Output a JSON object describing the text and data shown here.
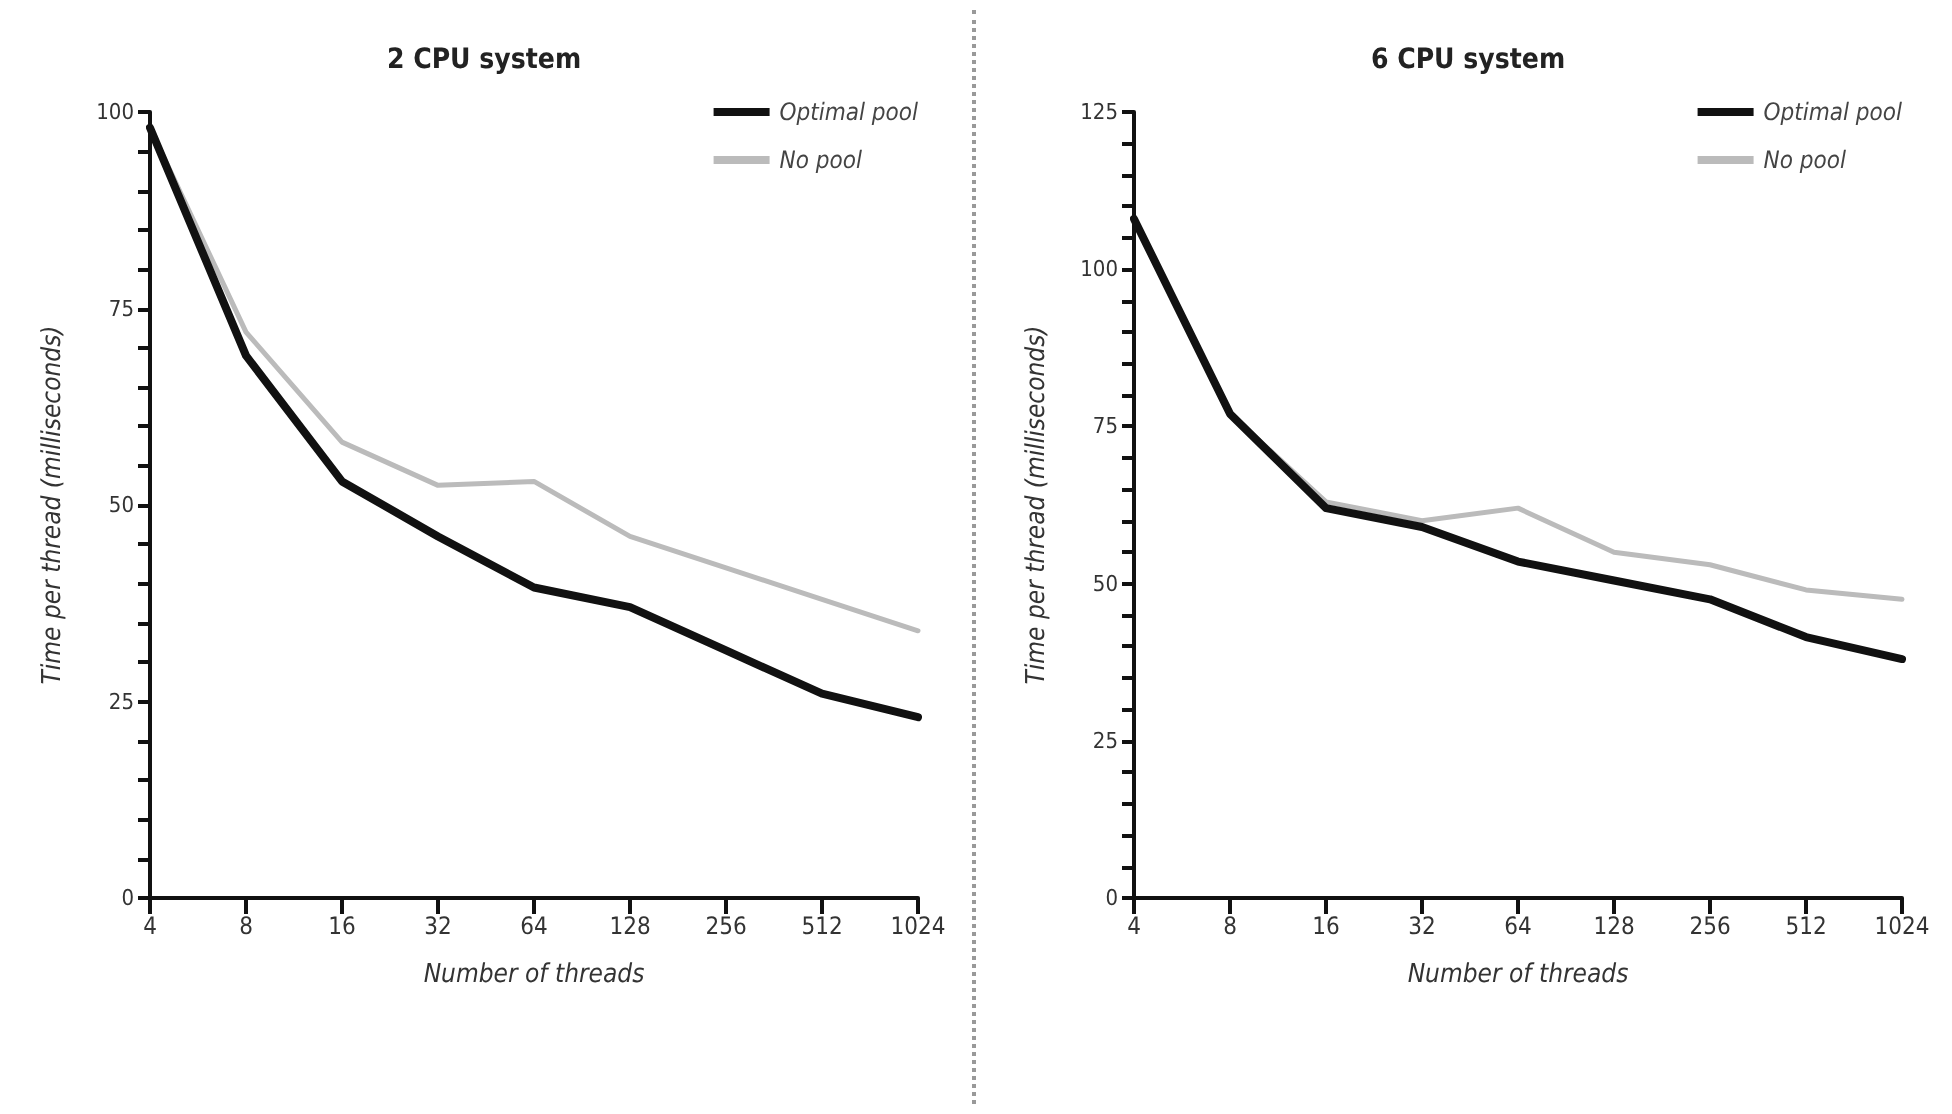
{
  "chart_data": [
    {
      "type": "line",
      "title": "2 CPU system",
      "xlabel": "Number of threads",
      "ylabel": "Time per thread (milliseconds)",
      "categories": [
        "4",
        "8",
        "16",
        "32",
        "64",
        "128",
        "256",
        "512",
        "1024"
      ],
      "series": [
        {
          "name": "Optimal pool",
          "color": "#111111",
          "values": [
            98,
            69,
            53,
            46,
            39.5,
            37,
            31.5,
            26,
            23
          ]
        },
        {
          "name": "No pool",
          "color": "#bbbbbb",
          "values": [
            98,
            72,
            58,
            52.5,
            53,
            46,
            42,
            38,
            34
          ]
        }
      ],
      "ylim": [
        0,
        100
      ],
      "yticks": [
        0,
        {
          "value": 5,
          "label": null
        },
        {
          "value": 10,
          "label": null
        },
        {
          "value": 15,
          "label": null
        },
        {
          "value": 20,
          "label": null
        },
        25,
        {
          "value": 30,
          "label": null
        },
        {
          "value": 35,
          "label": null
        },
        {
          "value": 40,
          "label": null
        },
        {
          "value": 45,
          "label": null
        },
        50,
        {
          "value": 55,
          "label": null
        },
        {
          "value": 60,
          "label": null
        },
        {
          "value": 65,
          "label": null
        },
        {
          "value": 70,
          "label": null
        },
        75,
        {
          "value": 80,
          "label": null
        },
        {
          "value": 85,
          "label": null
        },
        {
          "value": 90,
          "label": null
        },
        {
          "value": 95,
          "label": null
        },
        100
      ],
      "grid": false,
      "legend": "top right",
      "marker": "none",
      "line_style": "solid"
    },
    {
      "type": "line",
      "title": "6 CPU system",
      "xlabel": "Number of threads",
      "ylabel": "Time per thread (milliseconds)",
      "categories": [
        "4",
        "8",
        "16",
        "32",
        "64",
        "128",
        "256",
        "512",
        "1024"
      ],
      "series": [
        {
          "name": "Optimal pool",
          "color": "#111111",
          "values": [
            108,
            77,
            62,
            59,
            53.5,
            50.5,
            47.5,
            41.5,
            38
          ]
        },
        {
          "name": "No pool",
          "color": "#bbbbbb",
          "values": [
            108,
            77,
            63,
            60,
            62,
            55,
            53,
            49,
            47.5
          ]
        }
      ],
      "ylim": [
        0,
        125
      ],
      "yticks": [
        0,
        {
          "value": 5,
          "label": null
        },
        {
          "value": 10,
          "label": null
        },
        {
          "value": 15,
          "label": null
        },
        {
          "value": 20,
          "label": null
        },
        25,
        {
          "value": 30,
          "label": null
        },
        {
          "value": 35,
          "label": null
        },
        {
          "value": 40,
          "label": null
        },
        {
          "value": 45,
          "label": null
        },
        50,
        {
          "value": 55,
          "label": null
        },
        {
          "value": 60,
          "label": null
        },
        {
          "value": 65,
          "label": null
        },
        {
          "value": 70,
          "label": null
        },
        75,
        {
          "value": 80,
          "label": null
        },
        {
          "value": 85,
          "label": null
        },
        {
          "value": 90,
          "label": null
        },
        {
          "value": 95,
          "label": null
        },
        100,
        {
          "value": 105,
          "label": null
        },
        {
          "value": 110,
          "label": null
        },
        {
          "value": 115,
          "label": null
        },
        {
          "value": 120,
          "label": null
        },
        125
      ],
      "grid": false,
      "legend": "top right",
      "marker": "none",
      "line_style": "solid"
    }
  ]
}
